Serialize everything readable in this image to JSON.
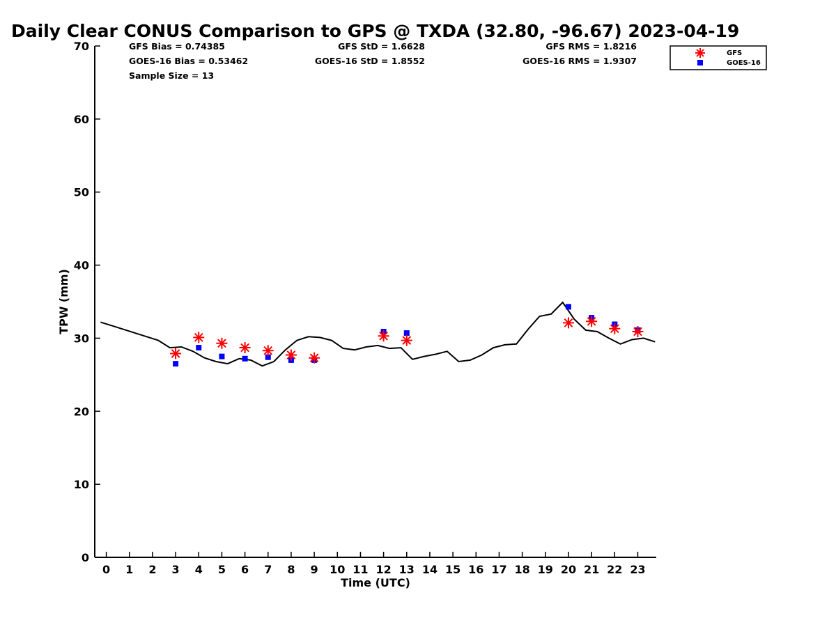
{
  "chart_data": {
    "type": "scatter",
    "title": "Daily Clear CONUS Comparison to GPS @ TXDA (32.80, -96.67) 2023-04-19",
    "xlabel": "Time (UTC)",
    "ylabel": "TPW (mm)",
    "xlim": [
      -0.5,
      23.8
    ],
    "ylim": [
      0,
      70
    ],
    "xticks": [
      0,
      1,
      2,
      3,
      4,
      5,
      6,
      7,
      8,
      9,
      10,
      11,
      12,
      13,
      14,
      15,
      16,
      17,
      18,
      19,
      20,
      21,
      22,
      23
    ],
    "yticks": [
      0,
      10,
      20,
      30,
      40,
      50,
      60,
      70
    ],
    "grid": false,
    "legend": "top-right",
    "stats": {
      "gfs_bias": "GFS Bias = 0.74385",
      "goes_bias": "GOES-16 Bias = 0.53462",
      "sample_size": "Sample Size = 13",
      "gfs_std": "GFS StD = 1.6628",
      "goes_std": "GOES-16 StD = 1.8552",
      "gfs_rms": "GFS RMS = 1.8216",
      "goes_rms": "GOES-16 RMS = 1.9307"
    },
    "series": [
      {
        "name": "GFS",
        "marker": "asterisk",
        "color": "#ff0000",
        "x": [
          3,
          4,
          5,
          6,
          7,
          8,
          9,
          12,
          13,
          20,
          21,
          22,
          23
        ],
        "y": [
          27.9,
          30.1,
          29.3,
          28.7,
          28.3,
          27.7,
          27.3,
          30.3,
          29.7,
          32.1,
          32.3,
          31.3,
          30.9
        ]
      },
      {
        "name": "GOES-16",
        "marker": "square",
        "color": "#0000ff",
        "x": [
          3,
          4,
          5,
          6,
          7,
          8,
          9,
          12,
          13,
          20,
          21,
          22,
          23
        ],
        "y": [
          26.5,
          28.7,
          27.5,
          27.2,
          27.4,
          27.0,
          27.0,
          30.9,
          30.7,
          34.3,
          32.8,
          31.9,
          31.1
        ]
      },
      {
        "marker": "line",
        "color": "#000000",
        "x": [
          -0.25,
          0.25,
          0.75,
          1.25,
          1.75,
          2.25,
          2.75,
          3.25,
          3.75,
          4.25,
          4.75,
          5.25,
          5.75,
          6.25,
          6.75,
          7.25,
          7.75,
          8.25,
          8.75,
          9.25,
          9.75,
          10.25,
          10.75,
          11.25,
          11.75,
          12.25,
          12.75,
          13.25,
          13.75,
          14.25,
          14.75,
          15.25,
          15.75,
          16.25,
          16.75,
          17.25,
          17.75,
          18.25,
          18.75,
          19.25,
          19.75,
          20.25,
          20.75,
          21.25,
          21.75,
          22.25,
          22.75,
          23.25,
          23.75
        ],
        "y": [
          32.2,
          31.7,
          31.2,
          30.7,
          30.2,
          29.7,
          28.7,
          28.8,
          28.2,
          27.3,
          26.8,
          26.5,
          27.2,
          27.0,
          26.2,
          26.8,
          28.4,
          29.7,
          30.2,
          30.1,
          29.7,
          28.6,
          28.4,
          28.8,
          29.0,
          28.6,
          28.7,
          27.1,
          27.5,
          27.8,
          28.2,
          26.8,
          27.0,
          27.7,
          28.7,
          29.1,
          29.2,
          31.2,
          33.0,
          33.3,
          34.9,
          32.6,
          31.1,
          30.9,
          30.0,
          29.2,
          29.8,
          30.0,
          29.5
        ]
      }
    ]
  }
}
